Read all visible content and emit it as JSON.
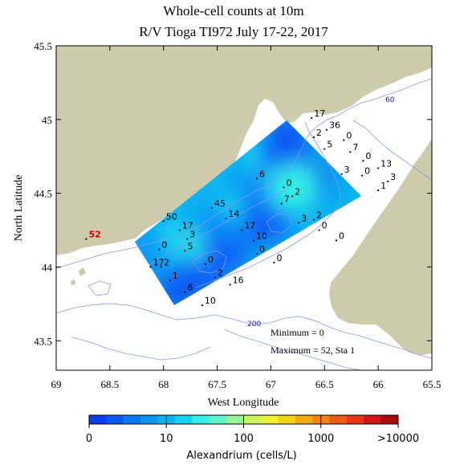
{
  "title": "Whole-cell counts at 10m",
  "subtitle": "R/V Tioga TI972 July 17-22, 2017",
  "x_axis": {
    "label": "West Longitude",
    "ticks": [
      "69",
      "68.5",
      "68",
      "67.5",
      "67",
      "66.5",
      "66",
      "65.5"
    ],
    "range": [
      69,
      65.5
    ]
  },
  "y_axis": {
    "label": "North Latitude",
    "ticks": [
      "45.5",
      "45",
      "44.5",
      "44",
      "43.5"
    ],
    "range": [
      43.3,
      45.5
    ]
  },
  "isobaths": [
    "60",
    "200"
  ],
  "summary": {
    "minimum": "Minimum = 0",
    "maximum": "Maximum = 52, Sta 1"
  },
  "colorbar": {
    "label": "Alexandrium (cells/L)",
    "ticks": [
      "0",
      "10",
      "100",
      "1000",
      ">10000"
    ],
    "colors": [
      "#0a3cf0",
      "#0a5af5",
      "#0a78f5",
      "#0a96f5",
      "#0ab4f0",
      "#14d2f0",
      "#32f0e6",
      "#5af5c8",
      "#96f596",
      "#c8f55a",
      "#f0f032",
      "#f5d214",
      "#f5aa0a",
      "#f58214",
      "#f05a14",
      "#eb3214",
      "#d21414",
      "#aa0a0a"
    ]
  },
  "colors": {
    "land": "#cdcbab",
    "isobath": "#8c96ee",
    "station_max": "#dd0000"
  },
  "stations": [
    {
      "label": "52",
      "lon": 68.72,
      "lat": 44.19,
      "max": true
    },
    {
      "label": "50",
      "lon": 68.0,
      "lat": 44.31
    },
    {
      "label": "17",
      "lon": 67.85,
      "lat": 44.25
    },
    {
      "label": "3",
      "lon": 67.78,
      "lat": 44.19
    },
    {
      "label": "0",
      "lon": 68.04,
      "lat": 44.12
    },
    {
      "label": "17",
      "lon": 68.12,
      "lat": 44.0
    },
    {
      "label": "2",
      "lon": 68.02,
      "lat": 44.0
    },
    {
      "label": "5",
      "lon": 67.8,
      "lat": 44.11
    },
    {
      "label": "1",
      "lon": 67.94,
      "lat": 43.91
    },
    {
      "label": "0",
      "lon": 67.61,
      "lat": 44.02
    },
    {
      "label": "2",
      "lon": 67.52,
      "lat": 43.93
    },
    {
      "label": "6",
      "lon": 67.8,
      "lat": 43.83
    },
    {
      "label": "16",
      "lon": 67.38,
      "lat": 43.88
    },
    {
      "label": "10",
      "lon": 67.64,
      "lat": 43.74
    },
    {
      "label": "45",
      "lon": 67.55,
      "lat": 44.4
    },
    {
      "label": "14",
      "lon": 67.42,
      "lat": 44.33
    },
    {
      "label": "17",
      "lon": 67.27,
      "lat": 44.25
    },
    {
      "label": "10",
      "lon": 67.16,
      "lat": 44.18
    },
    {
      "label": "0",
      "lon": 67.13,
      "lat": 44.09
    },
    {
      "label": "0",
      "lon": 66.97,
      "lat": 44.03
    },
    {
      "label": "6",
      "lon": 67.13,
      "lat": 44.6
    },
    {
      "label": "0",
      "lon": 66.88,
      "lat": 44.54
    },
    {
      "label": "7",
      "lon": 66.9,
      "lat": 44.43
    },
    {
      "label": "2",
      "lon": 66.8,
      "lat": 44.48
    },
    {
      "label": "3",
      "lon": 66.74,
      "lat": 44.3
    },
    {
      "label": "2",
      "lon": 66.6,
      "lat": 44.32
    },
    {
      "label": "0",
      "lon": 66.55,
      "lat": 44.25
    },
    {
      "label": "0",
      "lon": 66.39,
      "lat": 44.18
    },
    {
      "label": "17",
      "lon": 66.62,
      "lat": 45.01
    },
    {
      "label": "36",
      "lon": 66.48,
      "lat": 44.93
    },
    {
      "label": "2",
      "lon": 66.6,
      "lat": 44.88
    },
    {
      "label": "0",
      "lon": 66.32,
      "lat": 44.86
    },
    {
      "label": "5",
      "lon": 66.5,
      "lat": 44.8
    },
    {
      "label": "7",
      "lon": 66.26,
      "lat": 44.78
    },
    {
      "label": "0",
      "lon": 66.14,
      "lat": 44.72
    },
    {
      "label": "3",
      "lon": 66.34,
      "lat": 44.63
    },
    {
      "label": "13",
      "lon": 66.0,
      "lat": 44.67
    },
    {
      "label": "0",
      "lon": 66.15,
      "lat": 44.62
    },
    {
      "label": "3",
      "lon": 65.91,
      "lat": 44.58
    },
    {
      "label": "1",
      "lon": 66.0,
      "lat": 44.52
    }
  ],
  "field_cells": [
    {
      "u": 0.08,
      "v": 0.78,
      "level": 0
    },
    {
      "u": 0.08,
      "v": 0.5,
      "level": 2
    },
    {
      "u": 0.08,
      "v": 0.22,
      "level": 3
    },
    {
      "u": 0.2,
      "v": 0.55,
      "level": 4
    },
    {
      "u": 0.22,
      "v": 0.85,
      "level": 1
    },
    {
      "u": 0.24,
      "v": 0.3,
      "level": 5
    },
    {
      "u": 0.33,
      "v": 0.55,
      "level": 6
    },
    {
      "u": 0.36,
      "v": 0.2,
      "level": 4
    },
    {
      "u": 0.4,
      "v": 0.82,
      "level": 1
    },
    {
      "u": 0.45,
      "v": 0.45,
      "level": 3
    },
    {
      "u": 0.5,
      "v": 0.7,
      "level": 2
    },
    {
      "u": 0.55,
      "v": 0.25,
      "level": 4
    },
    {
      "u": 0.6,
      "v": 0.55,
      "level": 5
    },
    {
      "u": 0.65,
      "v": 0.85,
      "level": 1
    },
    {
      "u": 0.7,
      "v": 0.35,
      "level": 3
    },
    {
      "u": 0.75,
      "v": 0.65,
      "level": 2
    },
    {
      "u": 0.82,
      "v": 0.15,
      "level": 5
    },
    {
      "u": 0.88,
      "v": 0.45,
      "level": 1
    },
    {
      "u": 0.92,
      "v": 0.8,
      "level": 0
    },
    {
      "u": 0.85,
      "v": 0.75,
      "level": 6
    },
    {
      "u": 0.94,
      "v": 0.2,
      "level": 1
    }
  ]
}
